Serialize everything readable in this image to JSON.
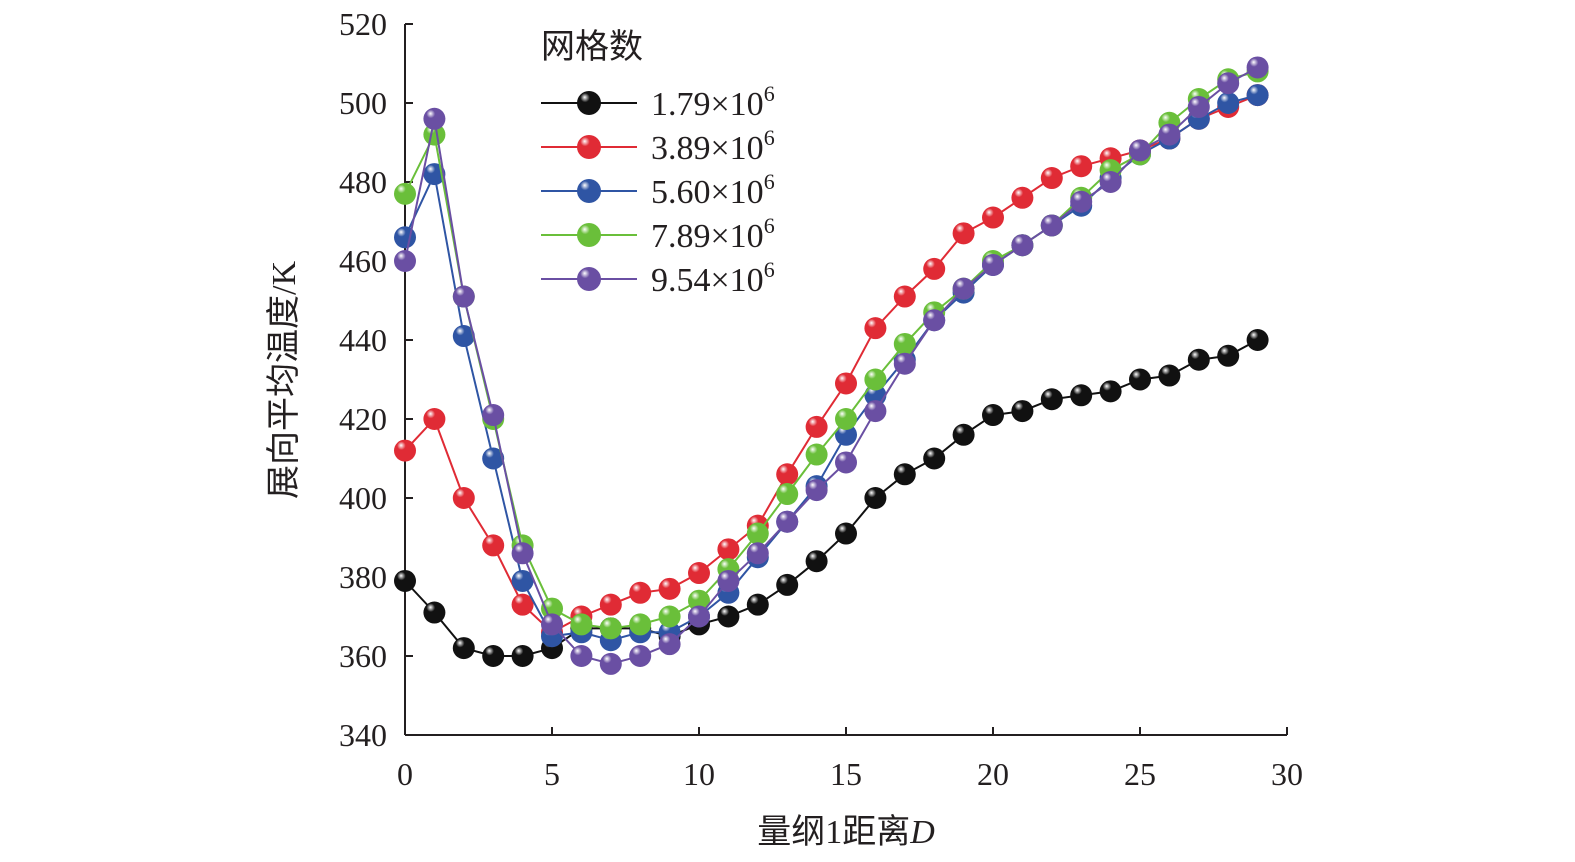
{
  "chart_data": {
    "type": "line",
    "title": "",
    "xlabel": "量纲1距离",
    "xlabel_italic": "D",
    "ylabel": "展向平均温度/K",
    "xlim": [
      0,
      30
    ],
    "ylim": [
      340,
      520
    ],
    "x_ticks": [
      "0",
      "5",
      "10",
      "15",
      "20",
      "25",
      "30"
    ],
    "y_ticks": [
      "340",
      "360",
      "380",
      "400",
      "420",
      "440",
      "460",
      "480",
      "500",
      "520"
    ],
    "grid": false,
    "legend": {
      "title": "网格数",
      "placement": "top-left",
      "entries": [
        {
          "mantissa": "1.79×10",
          "exponent": "6"
        },
        {
          "mantissa": "3.89×10",
          "exponent": "6"
        },
        {
          "mantissa": "5.60×10",
          "exponent": "6"
        },
        {
          "mantissa": "7.89×10",
          "exponent": "6"
        },
        {
          "mantissa": "9.54×10",
          "exponent": "6"
        }
      ]
    },
    "series": [
      {
        "name": "1.79×10⁶",
        "color": "#111111",
        "x": [
          0,
          1,
          2,
          3,
          4,
          5,
          6,
          7,
          8,
          9,
          10,
          11,
          12,
          13,
          14,
          15,
          16,
          17,
          18,
          19,
          20,
          21,
          22,
          23,
          24,
          25,
          26,
          27,
          28,
          29
        ],
        "y": [
          379,
          371,
          362,
          360,
          360,
          362,
          367,
          367,
          367,
          365,
          368,
          370,
          373,
          378,
          384,
          391,
          400,
          406,
          410,
          416,
          421,
          422,
          425,
          426,
          427,
          430,
          431,
          435,
          436,
          440
        ]
      },
      {
        "name": "3.89×10⁶",
        "color": "#e02b35",
        "x": [
          0,
          1,
          2,
          3,
          4,
          5,
          6,
          7,
          8,
          9,
          10,
          11,
          12,
          13,
          14,
          15,
          16,
          17,
          18,
          19,
          20,
          21,
          22,
          23,
          24,
          25,
          26,
          27,
          28,
          29
        ],
        "y": [
          412,
          420,
          400,
          388,
          373,
          366,
          370,
          373,
          376,
          377,
          381,
          387,
          393,
          406,
          418,
          429,
          443,
          451,
          458,
          467,
          471,
          476,
          481,
          484,
          486,
          488,
          491,
          496,
          499,
          502
        ]
      },
      {
        "name": "5.60×10⁶",
        "color": "#2f55a4",
        "x": [
          0,
          1,
          2,
          3,
          4,
          5,
          6,
          7,
          8,
          9,
          10,
          11,
          12,
          13,
          14,
          15,
          16,
          17,
          18,
          19,
          20,
          21,
          22,
          23,
          24,
          25,
          26,
          27,
          28,
          29
        ],
        "y": [
          466,
          482,
          441,
          410,
          379,
          365,
          366,
          364,
          366,
          366,
          370,
          376,
          385,
          394,
          403,
          416,
          426,
          435,
          445,
          452,
          459,
          464,
          469,
          474,
          481,
          487,
          491,
          496,
          500,
          502
        ]
      },
      {
        "name": "7.89×10⁶",
        "color": "#6abf3a",
        "x": [
          0,
          1,
          2,
          3,
          4,
          5,
          6,
          7,
          8,
          9,
          10,
          11,
          12,
          13,
          14,
          15,
          16,
          17,
          18,
          19,
          20,
          21,
          22,
          23,
          24,
          25,
          26,
          27,
          28,
          29
        ],
        "y": [
          477,
          492,
          451,
          420,
          388,
          372,
          368,
          367,
          368,
          370,
          374,
          382,
          391,
          401,
          411,
          420,
          430,
          439,
          447,
          453,
          460,
          464,
          469,
          476,
          483,
          487,
          495,
          501,
          506,
          508
        ]
      },
      {
        "name": "9.54×10⁶",
        "color": "#6a4fa3",
        "x": [
          0,
          1,
          2,
          3,
          4,
          5,
          6,
          7,
          8,
          9,
          10,
          11,
          12,
          13,
          14,
          15,
          16,
          17,
          18,
          19,
          20,
          21,
          22,
          23,
          24,
          25,
          26,
          27,
          28,
          29
        ],
        "y": [
          460,
          496,
          451,
          421,
          386,
          368,
          360,
          358,
          360,
          363,
          370,
          379,
          386,
          394,
          402,
          409,
          422,
          434,
          445,
          453,
          459,
          464,
          469,
          475,
          480,
          488,
          492,
          499,
          505,
          509
        ]
      }
    ]
  }
}
